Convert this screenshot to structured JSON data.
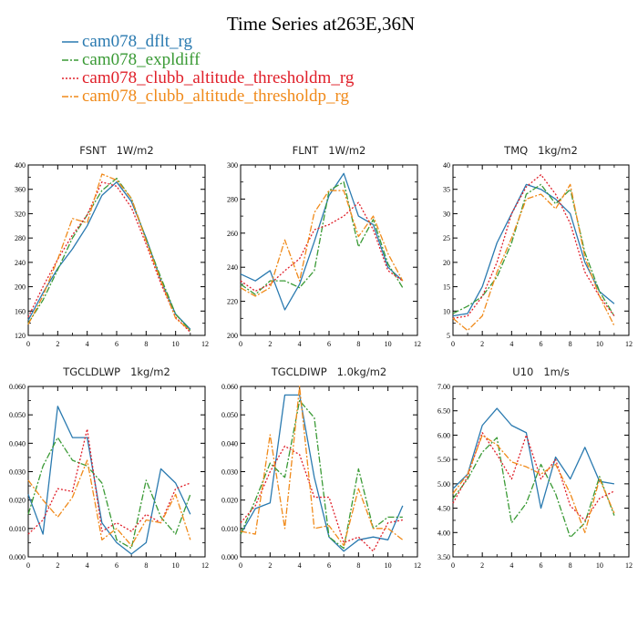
{
  "title": "Time Series at263E,36N",
  "legend": [
    {
      "label": "cam078_dflt_rg",
      "color": "#2a7ab0",
      "dash": "solid"
    },
    {
      "label": "cam078_expldiff",
      "color": "#3a9a35",
      "dash": "dashdot"
    },
    {
      "label": "cam078_clubb_altitude_thresholdm_rg",
      "color": "#e0202a",
      "dash": "dot"
    },
    {
      "label": "cam078_clubb_altitude_thresholdp_rg",
      "color": "#f08a1a",
      "dash": "dashdot"
    }
  ],
  "chart_data": [
    {
      "type": "line",
      "title": "FSNT   1W/m2",
      "xlim": [
        0,
        12
      ],
      "ylim": [
        120,
        400
      ],
      "xticks": [
        0,
        2,
        4,
        6,
        8,
        10,
        12
      ],
      "yticks": [
        120,
        160,
        200,
        240,
        280,
        320,
        360,
        400
      ],
      "ytick_labels": [
        "120",
        "160",
        "200",
        "240",
        "280",
        "320",
        "360",
        "400"
      ],
      "x": [
        0,
        1,
        2,
        3,
        4,
        5,
        6,
        7,
        8,
        9,
        10,
        11
      ],
      "series": [
        {
          "name": "cam078_dflt_rg",
          "values": [
            145,
            190,
            230,
            262,
            300,
            350,
            372,
            340,
            280,
            210,
            155,
            130
          ]
        },
        {
          "name": "cam078_expldiff",
          "values": [
            140,
            178,
            228,
            280,
            318,
            358,
            378,
            345,
            278,
            215,
            155,
            128
          ]
        },
        {
          "name": "cam078_clubb_altitude_thresholdm_rg",
          "values": [
            150,
            200,
            245,
            285,
            318,
            372,
            365,
            330,
            270,
            205,
            150,
            125
          ]
        },
        {
          "name": "cam078_clubb_altitude_thresholdp_rg",
          "values": [
            138,
            185,
            245,
            312,
            305,
            385,
            375,
            345,
            275,
            210,
            148,
            128
          ]
        }
      ]
    },
    {
      "type": "line",
      "title": "FLNT   1W/m2",
      "xlim": [
        0,
        12
      ],
      "ylim": [
        200,
        300
      ],
      "xticks": [
        0,
        2,
        4,
        6,
        8,
        10,
        12
      ],
      "yticks": [
        200,
        220,
        240,
        260,
        280,
        300
      ],
      "ytick_labels": [
        "200",
        "220",
        "240",
        "260",
        "280",
        "300"
      ],
      "x": [
        0,
        1,
        2,
        3,
        4,
        5,
        6,
        7,
        8,
        9,
        10,
        11
      ],
      "series": [
        {
          "name": "cam078_dflt_rg",
          "values": [
            236,
            232,
            238,
            215,
            230,
            255,
            282,
            295,
            270,
            265,
            240,
            232
          ]
        },
        {
          "name": "cam078_expldiff",
          "values": [
            230,
            224,
            232,
            232,
            228,
            238,
            285,
            290,
            252,
            268,
            242,
            228
          ]
        },
        {
          "name": "cam078_clubb_altitude_thresholdm_rg",
          "values": [
            232,
            226,
            230,
            238,
            245,
            262,
            265,
            270,
            278,
            262,
            238,
            232
          ]
        },
        {
          "name": "cam078_clubb_altitude_thresholdp_rg",
          "values": [
            228,
            223,
            228,
            256,
            232,
            272,
            285,
            285,
            258,
            270,
            248,
            232
          ]
        }
      ]
    },
    {
      "type": "line",
      "title": "TMQ   1kg/m2",
      "xlim": [
        0,
        12
      ],
      "ylim": [
        5,
        40
      ],
      "xticks": [
        0,
        2,
        4,
        6,
        8,
        10,
        12
      ],
      "yticks": [
        5,
        10,
        15,
        20,
        25,
        30,
        35,
        40
      ],
      "ytick_labels": [
        "5",
        "10",
        "15",
        "20",
        "25",
        "30",
        "35",
        "40"
      ],
      "x": [
        0,
        1,
        2,
        3,
        4,
        5,
        6,
        7,
        8,
        9,
        10,
        11
      ],
      "series": [
        {
          "name": "cam078_dflt_rg",
          "values": [
            9,
            9.5,
            15,
            24,
            30,
            36,
            35,
            33,
            30,
            20,
            14,
            11.5
          ]
        },
        {
          "name": "cam078_expldiff",
          "values": [
            9.5,
            11,
            13,
            17,
            24,
            34,
            36,
            32,
            35,
            22,
            14,
            9
          ]
        },
        {
          "name": "cam078_clubb_altitude_thresholdm_rg",
          "values": [
            8.5,
            9,
            13,
            20,
            30,
            35.5,
            38,
            34,
            28,
            18,
            13,
            9
          ]
        },
        {
          "name": "cam078_clubb_altitude_thresholdp_rg",
          "values": [
            8.5,
            6,
            9,
            18,
            25,
            33,
            34,
            31,
            36,
            21,
            13,
            7
          ]
        }
      ]
    },
    {
      "type": "line",
      "title": "TGCLDLWP   1kg/m2",
      "xlim": [
        0,
        12
      ],
      "ylim": [
        0,
        0.06
      ],
      "xticks": [
        0,
        2,
        4,
        6,
        8,
        10,
        12
      ],
      "yticks": [
        0,
        0.01,
        0.02,
        0.03,
        0.04,
        0.05,
        0.06
      ],
      "ytick_labels": [
        "0.000",
        "0.010",
        "0.020",
        "0.030",
        "0.040",
        "0.050",
        "0.060"
      ],
      "x": [
        0,
        1,
        2,
        3,
        4,
        5,
        6,
        7,
        8,
        9,
        10,
        11
      ],
      "series": [
        {
          "name": "cam078_dflt_rg",
          "values": [
            0.022,
            0.008,
            0.053,
            0.042,
            0.042,
            0.012,
            0.005,
            0.001,
            0.005,
            0.031,
            0.026,
            0.015
          ]
        },
        {
          "name": "cam078_expldiff",
          "values": [
            0.015,
            0.032,
            0.042,
            0.034,
            0.032,
            0.026,
            0.006,
            0.003,
            0.027,
            0.014,
            0.008,
            0.022
          ]
        },
        {
          "name": "cam078_clubb_altitude_thresholdm_rg",
          "values": [
            0.008,
            0.013,
            0.024,
            0.023,
            0.045,
            0.009,
            0.012,
            0.009,
            0.015,
            0.012,
            0.024,
            0.026
          ]
        },
        {
          "name": "cam078_clubb_altitude_thresholdp_rg",
          "values": [
            0.027,
            0.02,
            0.014,
            0.021,
            0.034,
            0.006,
            0.01,
            0.004,
            0.013,
            0.012,
            0.022,
            0.006
          ]
        }
      ]
    },
    {
      "type": "line",
      "title": "TGCLDIWP   1.0kg/m2",
      "xlim": [
        0,
        12
      ],
      "ylim": [
        0,
        0.06
      ],
      "xticks": [
        0,
        2,
        4,
        6,
        8,
        10,
        12
      ],
      "yticks": [
        0,
        0.01,
        0.02,
        0.03,
        0.04,
        0.05,
        0.06
      ],
      "ytick_labels": [
        "0.000",
        "0.010",
        "0.020",
        "0.030",
        "0.040",
        "0.050",
        "0.060"
      ],
      "x": [
        0,
        1,
        2,
        3,
        4,
        5,
        6,
        7,
        8,
        9,
        10,
        11
      ],
      "series": [
        {
          "name": "cam078_dflt_rg",
          "values": [
            0.008,
            0.017,
            0.019,
            0.057,
            0.057,
            0.028,
            0.007,
            0.002,
            0.006,
            0.007,
            0.006,
            0.018
          ]
        },
        {
          "name": "cam078_expldiff",
          "values": [
            0.008,
            0.02,
            0.033,
            0.028,
            0.055,
            0.049,
            0.007,
            0.003,
            0.031,
            0.01,
            0.014,
            0.014
          ]
        },
        {
          "name": "cam078_clubb_altitude_thresholdm_rg",
          "values": [
            0.012,
            0.018,
            0.03,
            0.039,
            0.036,
            0.021,
            0.021,
            0.005,
            0.007,
            0.002,
            0.012,
            0.013
          ]
        },
        {
          "name": "cam078_clubb_altitude_thresholdp_rg",
          "values": [
            0.009,
            0.008,
            0.043,
            0.01,
            0.06,
            0.01,
            0.011,
            0.004,
            0.024,
            0.01,
            0.01,
            0.006
          ]
        }
      ]
    },
    {
      "type": "line",
      "title": "U10   1m/s",
      "xlim": [
        0,
        12
      ],
      "ylim": [
        3.5,
        7
      ],
      "xticks": [
        0,
        2,
        4,
        6,
        8,
        10,
        12
      ],
      "yticks": [
        3.5,
        4,
        4.5,
        5,
        5.5,
        6,
        6.5,
        7
      ],
      "ytick_labels": [
        "3.50",
        "4.00",
        "4.50",
        "5.00",
        "5.50",
        "6.00",
        "6.50",
        "7.00"
      ],
      "x": [
        0,
        1,
        2,
        3,
        4,
        5,
        6,
        7,
        8,
        9,
        10,
        11
      ],
      "series": [
        {
          "name": "cam078_dflt_rg",
          "values": [
            4.9,
            5.2,
            6.2,
            6.55,
            6.2,
            6.05,
            4.5,
            5.55,
            5.1,
            5.75,
            5.05,
            5.0
          ]
        },
        {
          "name": "cam078_expldiff",
          "values": [
            4.7,
            5.1,
            5.65,
            5.95,
            4.2,
            4.6,
            5.4,
            4.8,
            3.9,
            4.2,
            5.15,
            4.35
          ]
        },
        {
          "name": "cam078_clubb_altitude_thresholdm_rg",
          "values": [
            4.6,
            5.15,
            6.05,
            5.6,
            5.1,
            6.0,
            5.1,
            5.5,
            4.55,
            4.25,
            4.7,
            4.85
          ]
        },
        {
          "name": "cam078_clubb_altitude_thresholdp_rg",
          "values": [
            4.8,
            5.2,
            6.0,
            5.8,
            5.45,
            5.35,
            5.2,
            5.4,
            4.8,
            4.0,
            5.1,
            4.4
          ]
        }
      ]
    }
  ]
}
